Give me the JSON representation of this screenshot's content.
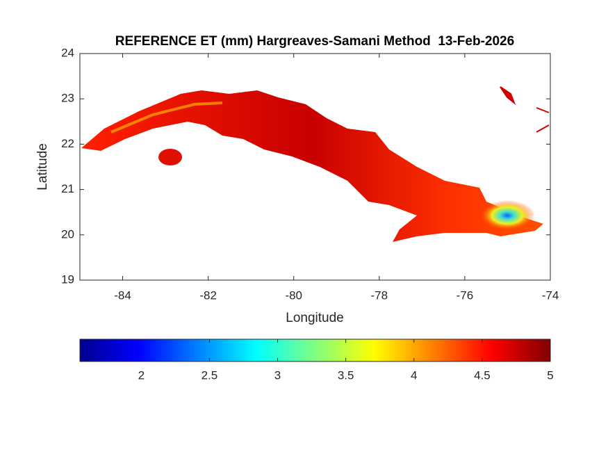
{
  "chart_data": {
    "type": "map",
    "title": "REFERENCE ET (mm) Hargreaves-Samani Method  13-Feb-2026",
    "xlabel": "Longitude",
    "ylabel": "Latitude",
    "xlim": [
      -85,
      -74
    ],
    "xticks": [
      -84,
      -82,
      -80,
      -78,
      -76,
      -74
    ],
    "ylim": [
      19,
      24
    ],
    "yticks": [
      19,
      20,
      21,
      22,
      23,
      24
    ],
    "colorbar": {
      "colormap": "jet",
      "clim": [
        1.55,
        5
      ],
      "ticks": [
        2,
        2.5,
        3,
        3.5,
        4,
        4.5,
        5
      ]
    }
  }
}
